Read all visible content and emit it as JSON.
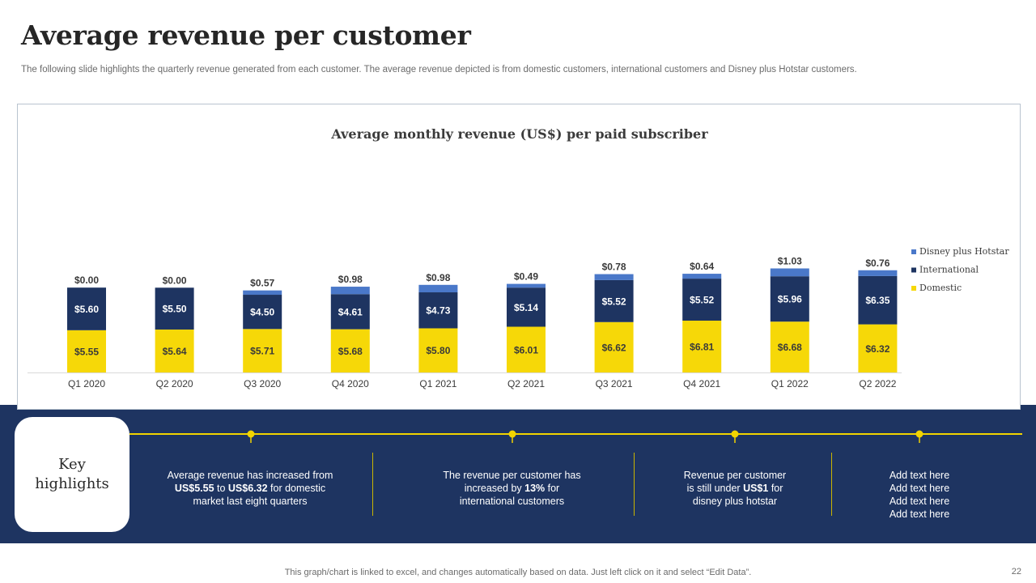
{
  "slide": {
    "title": "Average revenue per customer",
    "subtitle": "The following slide highlights the quarterly revenue generated from each customer. The average revenue depicted is from domestic customers, international customers and Disney plus Hotstar customers.",
    "footer": "This graph/chart is linked to excel,  and changes automatically based on data. Just left click on it and select “Edit Data”.",
    "page_number": "22"
  },
  "colors": {
    "domestic": "#f6d808",
    "international": "#1e3461",
    "hotstar": "#4a78c9",
    "band": "#1e3461",
    "accent": "#f2d400"
  },
  "chart_data": {
    "type": "bar",
    "stacked": true,
    "title": "Average monthly revenue (US$) per paid subscriber",
    "categories": [
      "Q1 2020",
      "Q2 2020",
      "Q3 2020",
      "Q4 2020",
      "Q1 2021",
      "Q2 2021",
      "Q3 2021",
      "Q4 2021",
      "Q1 2022",
      "Q2 2022"
    ],
    "series": [
      {
        "name": "Domestic",
        "values": [
          5.55,
          5.64,
          5.71,
          5.68,
          5.8,
          6.01,
          6.62,
          6.81,
          6.68,
          6.32
        ]
      },
      {
        "name": "International",
        "values": [
          5.6,
          5.5,
          4.5,
          4.61,
          4.73,
          5.14,
          5.52,
          5.52,
          5.96,
          6.35
        ]
      },
      {
        "name": "Disney plus Hotstar",
        "values": [
          0.0,
          0.0,
          0.57,
          0.98,
          0.98,
          0.49,
          0.78,
          0.64,
          1.03,
          0.76
        ]
      }
    ],
    "value_prefix": "$",
    "legend_position": "right",
    "legend_order": [
      "Disney plus Hotstar",
      "International",
      "Domestic"
    ],
    "grid": false,
    "ylim": [
      0,
      14
    ]
  },
  "key_highlights": {
    "heading": "Key highlights",
    "items": [
      {
        "text_parts": [
          {
            "text": "Average  revenue  has increased from",
            "bold": false,
            "br": true
          },
          {
            "text": "US$5.55",
            "bold": true
          },
          {
            "text": " to ",
            "bold": false
          },
          {
            "text": "US$6.32",
            "bold": true
          },
          {
            "text": " for domestic",
            "bold": false,
            "br": true
          },
          {
            "text": "market last eight quarters",
            "bold": false
          }
        ]
      },
      {
        "text_parts": [
          {
            "text": "The revenue  per customer has",
            "bold": false,
            "br": true
          },
          {
            "text": "increased by ",
            "bold": false
          },
          {
            "text": "13%",
            "bold": true
          },
          {
            "text": " for",
            "bold": false,
            "br": true
          },
          {
            "text": "international  customers",
            "bold": false
          }
        ]
      },
      {
        "text_parts": [
          {
            "text": "Revenue  per customer",
            "bold": false,
            "br": true
          },
          {
            "text": "is still under ",
            "bold": false
          },
          {
            "text": "US$1",
            "bold": true
          },
          {
            "text": " for",
            "bold": false,
            "br": true
          },
          {
            "text": "disney plus hotstar",
            "bold": false
          }
        ]
      },
      {
        "text_parts": [
          {
            "text": "Add text here",
            "bold": false,
            "br": true
          },
          {
            "text": "Add text here",
            "bold": false,
            "br": true
          },
          {
            "text": "Add text here",
            "bold": false,
            "br": true
          },
          {
            "text": "Add text here",
            "bold": false
          }
        ]
      }
    ]
  }
}
